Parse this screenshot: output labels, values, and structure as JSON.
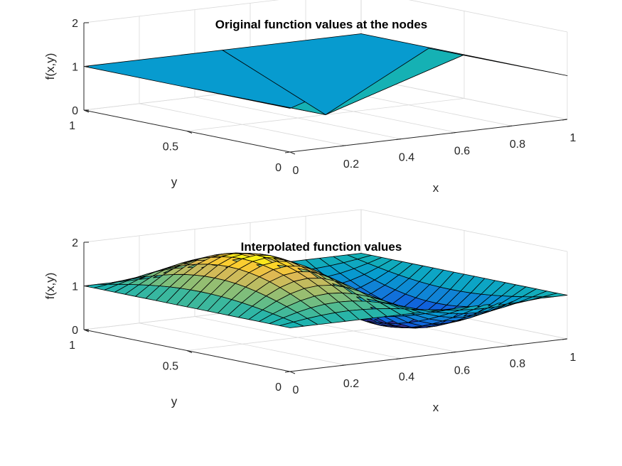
{
  "chart_data": [
    {
      "type": "surface",
      "title": "Original function values at the nodes",
      "xlabel": "x",
      "ylabel": "y",
      "zlabel": "f(x,y)",
      "xlim": [
        0,
        1
      ],
      "ylim": [
        0,
        1
      ],
      "zlim": [
        0,
        2
      ],
      "xticks": [
        "0",
        "0.2",
        "0.4",
        "0.6",
        "0.8",
        "1"
      ],
      "yticks": [
        "0",
        "0.5",
        "1"
      ],
      "zticks": [
        "0",
        "1",
        "2"
      ],
      "grid": true,
      "x": [
        0,
        0.5,
        1
      ],
      "y": [
        0,
        0.5,
        1
      ],
      "z": [
        [
          1,
          2,
          1
        ],
        [
          1,
          0,
          1
        ],
        [
          1,
          1,
          1
        ]
      ],
      "colormap": "parula",
      "shading": "faceted"
    },
    {
      "type": "surface",
      "title": "Interpolated function values",
      "xlabel": "x",
      "ylabel": "y",
      "zlabel": "f(x,y)",
      "xlim": [
        0,
        1
      ],
      "ylim": [
        0,
        1
      ],
      "zlim": [
        0,
        2
      ],
      "xticks": [
        "0",
        "0.2",
        "0.4",
        "0.6",
        "0.8",
        "1"
      ],
      "yticks": [
        "0",
        "0.5",
        "1"
      ],
      "zticks": [
        "0",
        "1",
        "2"
      ],
      "grid": true,
      "function": "1 + sin(2*pi*x)*sin(pi*y)",
      "x_samples": 21,
      "y_samples": 21,
      "colormap": "parula",
      "shading": "faceted"
    }
  ]
}
